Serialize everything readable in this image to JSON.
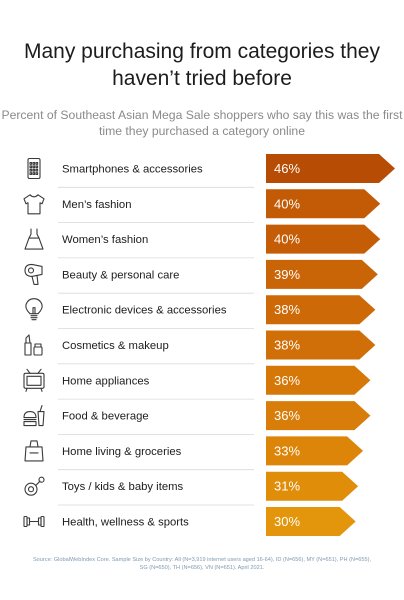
{
  "chart_data": {
    "type": "bar",
    "title": "Many purchasing from categories they haven’t tried before",
    "subtitle": "Percent of Southeast Asian Mega Sale shoppers who say this was the first time they purchased a category online",
    "categories": [
      "Smartphones & accessories",
      "Men’s fashion",
      "Women’s fashion",
      "Beauty & personal care",
      "Electronic devices & accessories",
      "Cosmetics & makeup",
      "Home appliances",
      "Food & beverage",
      "Home living & groceries",
      "Toys / kids & baby items",
      "Health, wellness & sports"
    ],
    "values": [
      46,
      40,
      40,
      39,
      38,
      38,
      36,
      36,
      33,
      31,
      30
    ],
    "value_labels": [
      "46%",
      "40%",
      "40%",
      "39%",
      "38%",
      "38%",
      "36%",
      "36%",
      "33%",
      "31%",
      "30%"
    ],
    "icons": [
      "smartphone-icon",
      "shirt-icon",
      "dress-icon",
      "hair-dryer-icon",
      "light-bulb-icon",
      "lipstick-icon",
      "television-icon",
      "food-icon",
      "grocery-bag-icon",
      "pacifier-icon",
      "dumbbell-icon"
    ],
    "colors": [
      "#b74c04",
      "#c25a06",
      "#c55d06",
      "#c96407",
      "#cd6a07",
      "#d06f08",
      "#d57808",
      "#d87d09",
      "#dc8509",
      "#e08e0a",
      "#e3960b"
    ],
    "xlabel": "",
    "ylabel": "",
    "grid": false
  },
  "footnote": "Source: GlobalWebIndex Core. Sample Size by Country: All (N=3,919 internet users aged 16-64), ID (N=656), MY (N=651), PH (N=655), SG (N=650), TH (N=656), VN (N=651). April 2021."
}
